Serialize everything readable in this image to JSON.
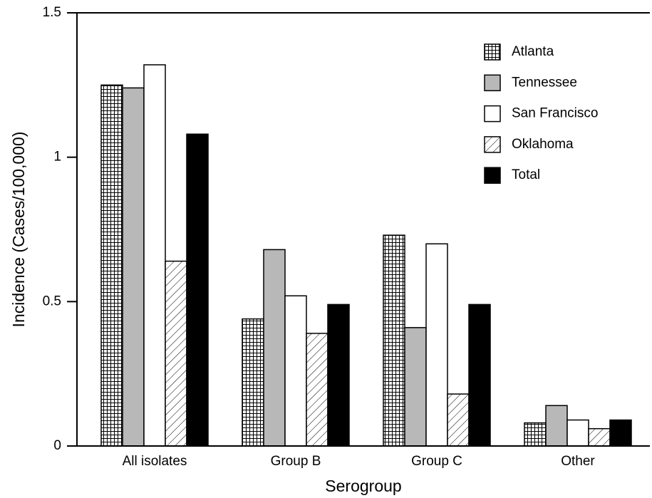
{
  "chart_data": {
    "type": "bar",
    "x_label": "Serogroup",
    "y_label": "Incidence (Cases/100,000)",
    "categories": [
      "All isolates",
      "Group B",
      "Group C",
      "Other"
    ],
    "series": [
      {
        "name": "Atlanta",
        "color": "#000000",
        "pattern": "grid",
        "values": [
          1.25,
          0.44,
          0.73,
          0.08
        ]
      },
      {
        "name": "Tennessee",
        "color": "#b8b8b8",
        "values": [
          1.24,
          0.68,
          0.41,
          0.14
        ]
      },
      {
        "name": "San Francisco",
        "color": "#ffffff",
        "values": [
          1.32,
          0.52,
          0.7,
          0.09
        ]
      },
      {
        "name": "Oklahoma",
        "color": "#000000",
        "pattern": "hatch",
        "values": [
          0.64,
          0.39,
          0.18,
          0.06
        ]
      },
      {
        "name": "Total",
        "color": "#000000",
        "values": [
          1.08,
          0.49,
          0.49,
          0.09
        ]
      }
    ],
    "ylim": [
      0,
      1.5
    ],
    "yticks": [
      0,
      0.5,
      1,
      1.5
    ],
    "legend": "upper right"
  }
}
